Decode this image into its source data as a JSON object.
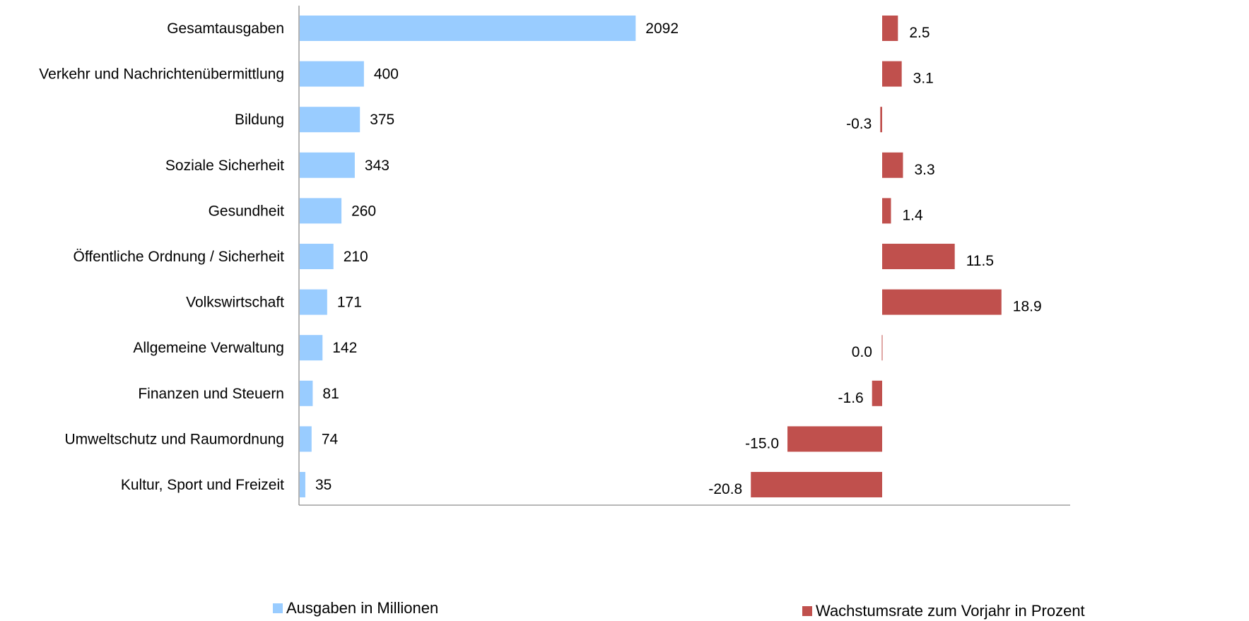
{
  "chart_data": {
    "type": "bar",
    "orientation": "horizontal",
    "title": "",
    "categories": [
      "Gesamtausgaben",
      "Verkehr und Nachrichtenübermittlung",
      "Bildung",
      "Soziale Sicherheit",
      "Gesundheit",
      "Öffentliche Ordnung / Sicherheit",
      "Volkswirtschaft",
      "Allgemeine Verwaltung",
      "Finanzen und Steuern",
      "Umweltschutz und Raumordnung",
      "Kultur, Sport und Freizeit"
    ],
    "series": [
      {
        "name": "Ausgaben in Millionen",
        "color": "#99CCFF",
        "values": [
          2092,
          400,
          375,
          343,
          260,
          210,
          171,
          142,
          81,
          74,
          35
        ],
        "labels": [
          "2092",
          "400",
          "375",
          "343",
          "260",
          "210",
          "171",
          "142",
          "81",
          "74",
          "35"
        ],
        "xlim": [
          0,
          4800
        ]
      },
      {
        "name": "Wachstumsrate zum Vorjahr in Prozent",
        "color": "#C0504D",
        "values": [
          2.5,
          3.1,
          -0.3,
          3.3,
          1.4,
          11.5,
          18.9,
          0.0,
          -1.6,
          -15.0,
          -20.8
        ],
        "labels": [
          "2.5",
          "3.1",
          "-0.3",
          "3.3",
          "1.4",
          "11.5",
          "18.9",
          "0.0",
          "-1.6",
          "-15.0",
          "-20.8"
        ],
        "xlim": [
          -27,
          27
        ]
      }
    ],
    "grid": false,
    "legend_position": "bottom"
  }
}
